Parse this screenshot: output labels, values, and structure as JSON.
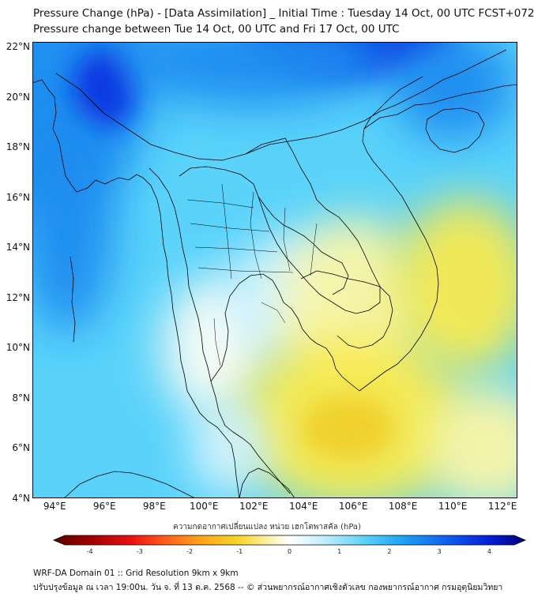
{
  "title": {
    "line1": "Pressure Change (hPa) - [Data Assimilation] _ Initial Time : Tuesday 14 Oct, 00 UTC FCST+072",
    "line2": "Pressure change between Tue 14 Oct, 00 UTC and Fri 17 Oct, 00 UTC"
  },
  "map": {
    "lat_labels": [
      "22°N",
      "20°N",
      "18°N",
      "16°N",
      "14°N",
      "12°N",
      "10°N",
      "8°N",
      "6°N",
      "4°N"
    ],
    "lon_labels": [
      "94°E",
      "96°E",
      "98°E",
      "100°E",
      "102°E",
      "104°E",
      "106°E",
      "108°E",
      "110°E",
      "112°E"
    ],
    "lat_range": [
      4,
      22.2
    ],
    "lon_range": [
      93.1,
      112.6
    ],
    "field_colors": {
      "deep_blue": "#0a2fe0",
      "blue": "#1e8cf0",
      "light_blue": "#5ad2fa",
      "pale": "#d8f4ff",
      "white": "#fbfdf6",
      "light_yellow": "#fbf6a8",
      "yellow": "#f9ea4f",
      "dark_yellow": "#f0cf2a"
    },
    "boundary_color": "#000000"
  },
  "colorbar": {
    "label": "ความกดอากาศเปลี่ยนแปลง หน่วย เฮกโตพาสคัล (hPa)",
    "ticks": [
      "-4",
      "-3",
      "-2",
      "-1",
      "0",
      "1",
      "2",
      "3",
      "4"
    ],
    "range": [
      -4.5,
      4.5
    ],
    "stops": [
      {
        "v": -4.5,
        "c": "#5a0000"
      },
      {
        "v": -3.8,
        "c": "#a00000"
      },
      {
        "v": -3.0,
        "c": "#ee1111"
      },
      {
        "v": -2.4,
        "c": "#ff5a1a"
      },
      {
        "v": -1.8,
        "c": "#ff9a1a"
      },
      {
        "v": -1.0,
        "c": "#f7d425"
      },
      {
        "v": -0.4,
        "c": "#fbf2a8"
      },
      {
        "v": 0.0,
        "c": "#ffffff"
      },
      {
        "v": 0.6,
        "c": "#c6f0ff"
      },
      {
        "v": 1.4,
        "c": "#5fd4fa"
      },
      {
        "v": 2.2,
        "c": "#1aa0f5"
      },
      {
        "v": 3.0,
        "c": "#1060f0"
      },
      {
        "v": 3.8,
        "c": "#0520d8"
      },
      {
        "v": 4.5,
        "c": "#00007a"
      }
    ]
  },
  "footer": {
    "line1": "WRF-DA Domain 01 :: Grid Resolution 9km x 9km",
    "line2": "ปรับปรุงข้อมูล ณ เวลา 19:00น. วัน จ. ที่ 13 ต.ค. 2568 -- © ส่วนพยากรณ์อากาศเชิงตัวเลข กองพยากรณ์อากาศ กรมอุตุนิยมวิทยา"
  }
}
